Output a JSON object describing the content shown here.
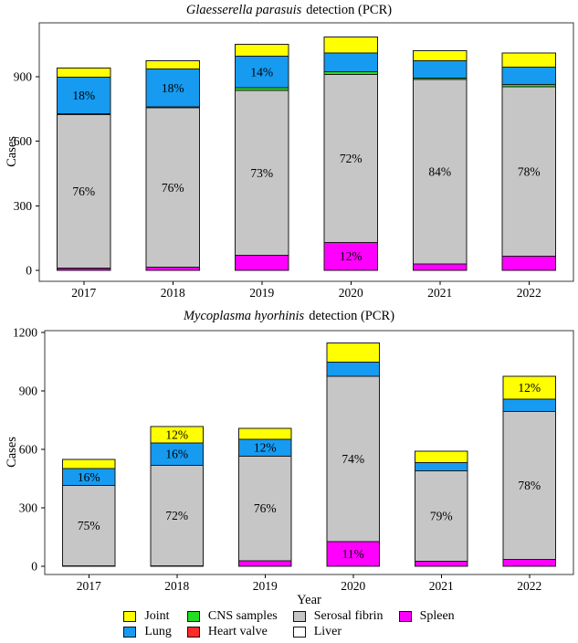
{
  "figure": {
    "background": "#ffffff",
    "panel_border_color": "#3a3a3a",
    "segment_border_color": "#1a1a1a"
  },
  "chart_data": [
    {
      "type": "bar",
      "stacked": true,
      "title_italic": "Glaesserella parasuis",
      "title_rest": "detection (PCR)",
      "xlabel": "",
      "ylabel": "Cases",
      "ylim": [
        0,
        1150
      ],
      "yticks": [
        0,
        300,
        600,
        900
      ],
      "grid": false,
      "legend_position": "none",
      "categories": [
        "2017",
        "2018",
        "2019",
        "2020",
        "2021",
        "2022"
      ],
      "series": [
        {
          "name": "Spleen",
          "color": "#FF00FF",
          "values": [
            8,
            14,
            70,
            130,
            30,
            65
          ],
          "labels": [
            "",
            "",
            "",
            "12%",
            "",
            ""
          ]
        },
        {
          "name": "Liver",
          "color": "#FFFFFF",
          "values": [
            2,
            0,
            0,
            0,
            0,
            0
          ],
          "labels": [
            "",
            "",
            "",
            "",
            "",
            ""
          ]
        },
        {
          "name": "Serosal fibrin",
          "color": "#C6C6C6",
          "values": [
            714,
            741,
            766,
            781,
            857,
            788
          ],
          "labels": [
            "76%",
            "76%",
            "73%",
            "72%",
            "84%",
            "78%"
          ]
        },
        {
          "name": "Heart valve",
          "color": "#FF2B2B",
          "values": [
            1,
            0,
            0,
            0,
            0,
            0
          ],
          "labels": [
            "",
            "",
            "",
            "",
            "",
            ""
          ]
        },
        {
          "name": "CNS samples",
          "color": "#22DD22",
          "values": [
            3,
            4,
            12,
            12,
            6,
            10
          ],
          "labels": [
            "",
            "",
            "",
            "",
            "",
            ""
          ]
        },
        {
          "name": "Lung",
          "color": "#169BF1",
          "values": [
            169,
            176,
            147,
            87,
            82,
            82
          ],
          "labels": [
            "18%",
            "18%",
            "14%",
            "",
            "",
            ""
          ]
        },
        {
          "name": "Joint",
          "color": "#FFFF00",
          "values": [
            43,
            40,
            55,
            75,
            45,
            65
          ],
          "labels": [
            "",
            "",
            "",
            "",
            "",
            ""
          ]
        }
      ]
    },
    {
      "type": "bar",
      "stacked": true,
      "title_italic": "Mycoplasma hyorhinis",
      "title_rest": "detection (PCR)",
      "xlabel": "Year",
      "ylabel": "Cases",
      "ylim": [
        0,
        1220
      ],
      "yticks": [
        0,
        300,
        600,
        900,
        1200
      ],
      "grid": false,
      "legend_position": "bottom",
      "categories": [
        "2017",
        "2018",
        "2019",
        "2020",
        "2021",
        "2022"
      ],
      "series": [
        {
          "name": "Spleen",
          "color": "#FF00FF",
          "values": [
            3,
            2,
            28,
            126,
            25,
            35
          ],
          "labels": [
            "",
            "",
            "",
            "11%",
            "",
            ""
          ]
        },
        {
          "name": "Liver",
          "color": "#FFFFFF",
          "values": [
            0,
            0,
            0,
            0,
            0,
            0
          ],
          "labels": [
            "",
            "",
            "",
            "",
            "",
            ""
          ]
        },
        {
          "name": "Serosal fibrin",
          "color": "#C6C6C6",
          "values": [
            411,
            517,
            538,
            849,
            466,
            760
          ],
          "labels": [
            "75%",
            "72%",
            "76%",
            "74%",
            "79%",
            "78%"
          ]
        },
        {
          "name": "Heart valve",
          "color": "#FF2B2B",
          "values": [
            0,
            0,
            0,
            0,
            0,
            0
          ],
          "labels": [
            "",
            "",
            "",
            "",
            "",
            ""
          ]
        },
        {
          "name": "CNS samples",
          "color": "#22DD22",
          "values": [
            0,
            0,
            0,
            0,
            0,
            0
          ],
          "labels": [
            "",
            "",
            "",
            "",
            "",
            ""
          ]
        },
        {
          "name": "Lung",
          "color": "#169BF1",
          "values": [
            88,
            115,
            85,
            72,
            40,
            62
          ],
          "labels": [
            "16%",
            "16%",
            "12%",
            "",
            "",
            ""
          ]
        },
        {
          "name": "Joint",
          "color": "#FFFF00",
          "values": [
            46,
            84,
            57,
            100,
            59,
            118
          ],
          "labels": [
            "",
            "12%",
            "",
            "",
            "",
            "12%"
          ]
        }
      ]
    }
  ],
  "legend": {
    "columns": [
      [
        {
          "label": "Joint",
          "color": "#FFFF00"
        },
        {
          "label": "Lung",
          "color": "#169BF1"
        }
      ],
      [
        {
          "label": "CNS samples",
          "color": "#22DD22"
        },
        {
          "label": "Heart valve",
          "color": "#FF2B2B"
        }
      ],
      [
        {
          "label": "Serosal fibrin",
          "color": "#C6C6C6"
        },
        {
          "label": "Liver",
          "color": "#FFFFFF"
        }
      ],
      [
        {
          "label": "Spleen",
          "color": "#FF00FF"
        }
      ]
    ]
  }
}
